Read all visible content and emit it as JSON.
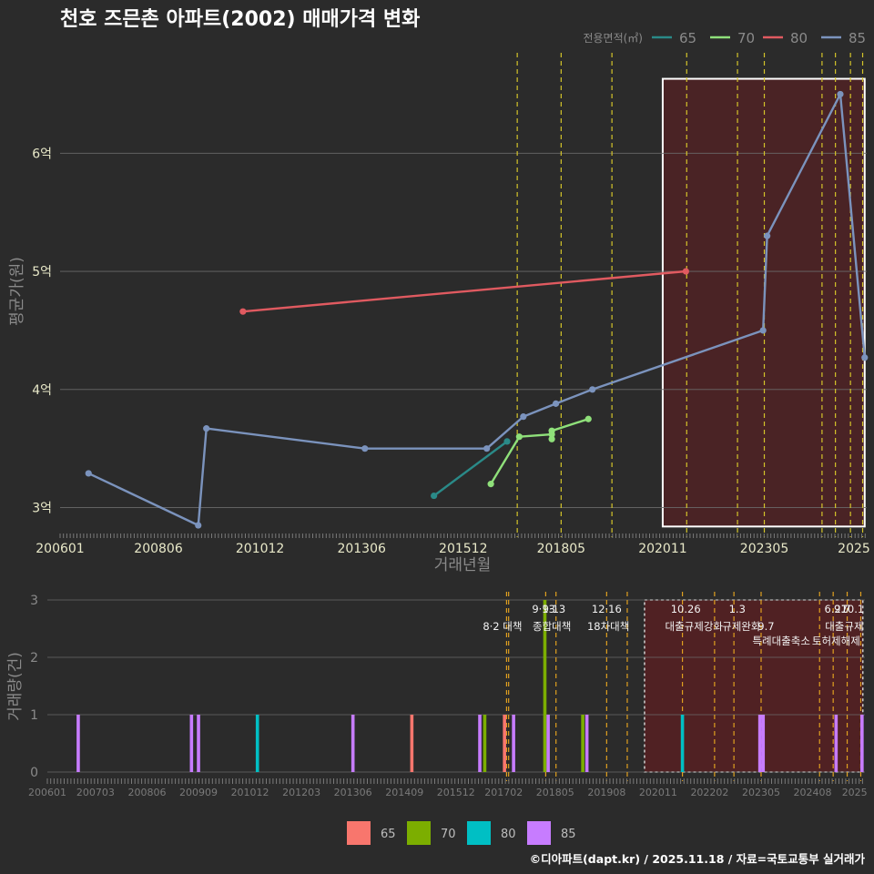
{
  "colors": {
    "background": "#2b2b2b",
    "grid": "#6a6a6a",
    "axis_text": "#e8e8c8",
    "axis_title": "#8a8a8a",
    "bottom_tick": "#7a7a7a",
    "policy_line": "#d4c42a",
    "policy_line_bottom": "#e0a020",
    "highlight_fill": "#5a1f22",
    "line_65": "#2a8a88",
    "line_70": "#8fe07a",
    "line_80": "#e05a60",
    "line_85": "#7b93bd",
    "bar_65": "#f8766d",
    "bar_70": "#7cae00",
    "bar_80": "#00bfc4",
    "bar_85": "#c77cff"
  },
  "chart_data": [
    {
      "type": "line",
      "title": "천호 즈믄촌 아파트(2002) 매매가격 변화",
      "xlabel": "거래년월",
      "ylabel": "평균가(원)",
      "xlim": [
        2006.0,
        2025.85
      ],
      "ylim": [
        2.75,
        6.85
      ],
      "y_ticks": [
        {
          "value": 3,
          "label": "3억"
        },
        {
          "value": 4,
          "label": "4억"
        },
        {
          "value": 5,
          "label": "5억"
        },
        {
          "value": 6,
          "label": "6억"
        }
      ],
      "x_ticks": [
        {
          "value": 2006.0,
          "label": "200601"
        },
        {
          "value": 2008.42,
          "label": "200806"
        },
        {
          "value": 2010.92,
          "label": "201012"
        },
        {
          "value": 2013.42,
          "label": "201306"
        },
        {
          "value": 2015.92,
          "label": "201512"
        },
        {
          "value": 2018.33,
          "label": "201805"
        },
        {
          "value": 2020.83,
          "label": "202011"
        },
        {
          "value": 2023.33,
          "label": "202305"
        },
        {
          "value": 2025.6,
          "label": "2025"
        }
      ],
      "legend_title": "전용면적(㎡)",
      "series": [
        {
          "name": "65",
          "color_key": "line_65",
          "points": [
            [
              2015.2,
              3.1
            ],
            [
              2017.0,
              3.56
            ]
          ]
        },
        {
          "name": "70",
          "color_key": "line_70",
          "points": [
            [
              2016.6,
              3.2
            ],
            [
              2017.3,
              3.6
            ],
            [
              2018.1,
              3.62
            ],
            [
              2018.1,
              3.58
            ],
            [
              2018.1,
              3.65
            ],
            [
              2019.0,
              3.75
            ]
          ]
        },
        {
          "name": "80",
          "color_key": "line_80",
          "points": [
            [
              2010.5,
              4.66
            ],
            [
              2021.4,
              5.0
            ]
          ]
        },
        {
          "name": "85",
          "color_key": "line_85",
          "points": [
            [
              2006.7,
              3.29
            ],
            [
              2009.4,
              2.85
            ],
            [
              2009.6,
              3.67
            ],
            [
              2013.5,
              3.5
            ],
            [
              2016.5,
              3.5
            ],
            [
              2017.4,
              3.77
            ],
            [
              2018.2,
              3.88
            ],
            [
              2019.1,
              4.0
            ],
            [
              2023.3,
              4.5
            ],
            [
              2023.4,
              5.3
            ],
            [
              2025.2,
              6.5
            ],
            [
              2025.8,
              4.27
            ]
          ]
        }
      ],
      "policy_lines": [
        2017.25,
        2018.33,
        2019.58,
        2021.42,
        2022.67,
        2023.33,
        2024.75,
        2025.08,
        2025.45,
        2025.75
      ],
      "highlight_range": {
        "x": [
          2020.83,
          2025.8
        ],
        "y": [
          2.84,
          6.63
        ]
      }
    },
    {
      "type": "bar",
      "ylabel": "거래량(건)",
      "xlim": [
        2006.0,
        2025.85
      ],
      "ylim": [
        0,
        3
      ],
      "y_ticks": [
        {
          "value": 0,
          "label": "0"
        },
        {
          "value": 1,
          "label": "1"
        },
        {
          "value": 2,
          "label": "2"
        },
        {
          "value": 3,
          "label": "3"
        }
      ],
      "x_ticks": [
        {
          "value": 2006.0,
          "label": "200601"
        },
        {
          "value": 2007.17,
          "label": "200703"
        },
        {
          "value": 2008.42,
          "label": "200806"
        },
        {
          "value": 2009.67,
          "label": "200909"
        },
        {
          "value": 2010.92,
          "label": "201012"
        },
        {
          "value": 2012.17,
          "label": "201203"
        },
        {
          "value": 2013.42,
          "label": "201306"
        },
        {
          "value": 2014.67,
          "label": "201409"
        },
        {
          "value": 2015.92,
          "label": "201512"
        },
        {
          "value": 2017.08,
          "label": "201702"
        },
        {
          "value": 2018.33,
          "label": "201805"
        },
        {
          "value": 2019.58,
          "label": "201908"
        },
        {
          "value": 2020.83,
          "label": "202011"
        },
        {
          "value": 2022.08,
          "label": "202202"
        },
        {
          "value": 2023.33,
          "label": "202305"
        },
        {
          "value": 2024.58,
          "label": "202408"
        },
        {
          "value": 2025.6,
          "label": "2025"
        }
      ],
      "legend": [
        {
          "name": "65",
          "color_key": "bar_65"
        },
        {
          "name": "70",
          "color_key": "bar_70"
        },
        {
          "name": "80",
          "color_key": "bar_80"
        },
        {
          "name": "85",
          "color_key": "bar_85"
        }
      ],
      "bars": [
        {
          "x": 2006.75,
          "value": 1,
          "series": "85"
        },
        {
          "x": 2009.5,
          "value": 1,
          "series": "85"
        },
        {
          "x": 2009.67,
          "value": 1,
          "series": "85"
        },
        {
          "x": 2011.1,
          "value": 1,
          "series": "80"
        },
        {
          "x": 2013.42,
          "value": 1,
          "series": "85"
        },
        {
          "x": 2014.85,
          "value": 1,
          "series": "65"
        },
        {
          "x": 2016.5,
          "value": 1,
          "series": "85"
        },
        {
          "x": 2016.62,
          "value": 1,
          "series": "70"
        },
        {
          "x": 2017.1,
          "value": 1,
          "series": "65"
        },
        {
          "x": 2017.32,
          "value": 1,
          "series": "85"
        },
        {
          "x": 2018.08,
          "value": 3,
          "series": "70"
        },
        {
          "x": 2018.16,
          "value": 1,
          "series": "85"
        },
        {
          "x": 2019.0,
          "value": 1,
          "series": "70"
        },
        {
          "x": 2019.1,
          "value": 1,
          "series": "85"
        },
        {
          "x": 2021.42,
          "value": 1,
          "series": "80"
        },
        {
          "x": 2023.3,
          "value": 1,
          "series": "85"
        },
        {
          "x": 2023.38,
          "value": 1,
          "series": "85"
        },
        {
          "x": 2025.15,
          "value": 1,
          "series": "85"
        },
        {
          "x": 2025.78,
          "value": 1,
          "series": "85"
        }
      ],
      "policy_lines": [
        2017.15,
        2017.2,
        2018.1,
        2018.35,
        2019.58,
        2020.08,
        2021.42,
        2022.2,
        2022.67,
        2023.33,
        2024.75,
        2025.08,
        2025.42,
        2025.75
      ],
      "highlight_range": {
        "x": [
          2020.5,
          2025.8
        ],
        "y": [
          0,
          3
        ]
      },
      "annotations": [
        {
          "x": 2017.05,
          "level": 2,
          "text": "8·2 대책"
        },
        {
          "x": 2018.05,
          "level": 1,
          "text": "9·13"
        },
        {
          "x": 2018.3,
          "level": 1,
          "text": "9·13"
        },
        {
          "x": 2018.25,
          "level": 2,
          "text": "종합대책"
        },
        {
          "x": 2019.58,
          "level": 1,
          "text": "12·16"
        },
        {
          "x": 2019.62,
          "level": 2,
          "text": "18차대책"
        },
        {
          "x": 2021.5,
          "level": 1,
          "text": "10.26"
        },
        {
          "x": 2021.7,
          "level": 2,
          "text": "대출규제강화"
        },
        {
          "x": 2022.75,
          "level": 1,
          "text": "1.3"
        },
        {
          "x": 2022.85,
          "level": 2,
          "text": "규제완화"
        },
        {
          "x": 2023.45,
          "level": 2,
          "text": "9.7"
        },
        {
          "x": 2023.82,
          "level": 3,
          "text": "특례대출축소"
        },
        {
          "x": 2025.15,
          "level": 1,
          "text": "6.27"
        },
        {
          "x": 2025.3,
          "level": 1,
          "text": "9.7"
        },
        {
          "x": 2025.55,
          "level": 1,
          "text": "10.1"
        },
        {
          "x": 2025.35,
          "level": 2,
          "text": "대출규제"
        },
        {
          "x": 2025.15,
          "level": 3,
          "text": "토허제해제"
        }
      ]
    }
  ],
  "footer": {
    "credit": "©디아파트(dapt.kr) / 2025.11.18 / 자료=국토교통부 실거래가"
  }
}
